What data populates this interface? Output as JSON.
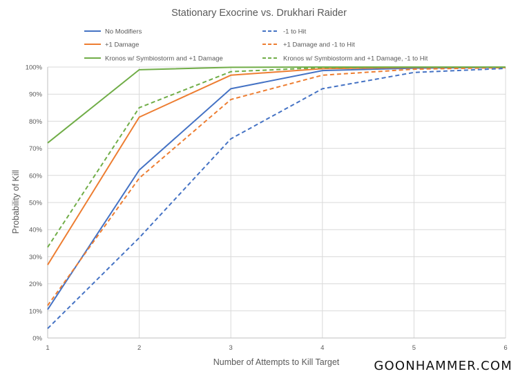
{
  "chart_data": {
    "type": "line",
    "title": "Stationary Exocrine vs. Drukhari Raider",
    "xlabel": "Number of Attempts to Kill Target",
    "ylabel": "Probability of Kill",
    "x": [
      1,
      2,
      3,
      4,
      5,
      6
    ],
    "x_ticks": [
      "1",
      "2",
      "3",
      "4",
      "5",
      "6"
    ],
    "xlim": [
      1,
      6
    ],
    "ylim": [
      0,
      100
    ],
    "y_ticks": [
      "0%",
      "10%",
      "20%",
      "30%",
      "40%",
      "50%",
      "60%",
      "70%",
      "80%",
      "90%",
      "100%"
    ],
    "grid": true,
    "legend_position": "top",
    "series": [
      {
        "name": "No Modifiers",
        "color": "#4472C4",
        "dashed": false,
        "values": [
          10.5,
          62,
          92,
          98.7,
          99.6,
          99.9
        ]
      },
      {
        "name": "-1 to Hit",
        "color": "#4472C4",
        "dashed": true,
        "values": [
          3.5,
          37,
          73.5,
          92,
          98,
          99.5
        ]
      },
      {
        "name": "+1 Damage",
        "color": "#ED7D31",
        "dashed": false,
        "values": [
          27,
          81.5,
          97,
          99.4,
          99.9,
          100
        ]
      },
      {
        "name": "+1 Damage and -1 to Hit",
        "color": "#ED7D31",
        "dashed": true,
        "values": [
          12,
          59,
          88,
          97,
          99.2,
          99.8
        ]
      },
      {
        "name": "Kronos w/ Symbiostorm and +1 Damage",
        "color": "#70AD47",
        "dashed": false,
        "values": [
          72,
          99,
          99.9,
          100,
          100,
          100
        ]
      },
      {
        "name": "Kronos w/ Symbiostorm and +1 Damage, -1 to Hit",
        "color": "#70AD47",
        "dashed": true,
        "values": [
          33.5,
          85,
          98.3,
          99.8,
          100,
          100
        ]
      }
    ]
  },
  "watermark": "GOONHAMMER.COM"
}
